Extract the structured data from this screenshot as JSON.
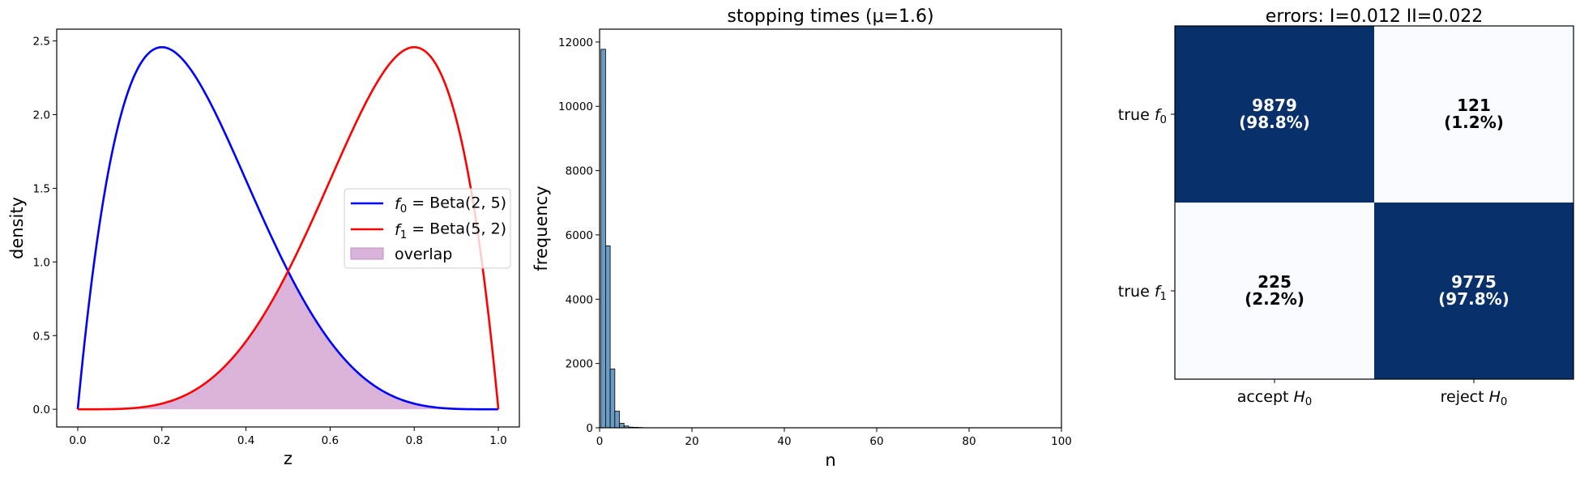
{
  "chart_data": [
    {
      "type": "line",
      "title": "",
      "xlabel": "z",
      "ylabel": "density",
      "xlim": [
        -0.05,
        1.05
      ],
      "ylim": [
        -0.12,
        2.58
      ],
      "xticks": [
        "0.0",
        "0.2",
        "0.4",
        "0.6",
        "0.8",
        "1.0"
      ],
      "yticks": [
        "0.0",
        "0.5",
        "1.0",
        "1.5",
        "2.0",
        "2.5"
      ],
      "grid": false,
      "legend_placement": "center-right",
      "series": [
        {
          "name": "f_0 = Beta(2, 5)",
          "sym": "f",
          "sub": "0",
          "rest": " = Beta(2, 5)",
          "distribution": "beta",
          "a": 2,
          "b": 5,
          "color": "#0000ff"
        },
        {
          "name": "f_1 = Beta(5, 2)",
          "sym": "f",
          "sub": "1",
          "rest": " = Beta(5, 2)",
          "distribution": "beta",
          "a": 5,
          "b": 2,
          "color": "#ff0000"
        }
      ],
      "fill": {
        "name": "overlap",
        "description": "min(f0, f1)",
        "color": "#d9b3d9"
      }
    },
    {
      "type": "bar",
      "title": "stopping times (μ=1.6)",
      "xlabel": "n",
      "ylabel": "frequency",
      "xlim": [
        0,
        100
      ],
      "ylim": [
        0,
        12400
      ],
      "xticks": [
        "0",
        "20",
        "40",
        "60",
        "80",
        "100"
      ],
      "yticks": [
        "0",
        "2000",
        "4000",
        "6000",
        "8000",
        "10000",
        "12000"
      ],
      "grid": false,
      "bin_width": 1,
      "bins": [
        0,
        1,
        2,
        3,
        4,
        5,
        6,
        7,
        8
      ],
      "values": [
        11775,
        5660,
        1830,
        515,
        140,
        55,
        20,
        15,
        10
      ],
      "color": "#6a9bc3",
      "edge_color": "#000000"
    },
    {
      "type": "heatmap",
      "title": "errors: I=0.012 II=0.022",
      "xticks": [
        {
          "pre": "accept ",
          "sym": "H",
          "sub": "0"
        },
        {
          "pre": "reject ",
          "sym": "H",
          "sub": "0"
        }
      ],
      "yticks": [
        {
          "pre": "true ",
          "sym": "f",
          "sub": "0"
        },
        {
          "pre": "true ",
          "sym": "f",
          "sub": "1"
        }
      ],
      "values": [
        [
          9879,
          121
        ],
        [
          225,
          9775
        ]
      ],
      "labels": [
        [
          "9879",
          "(98.8%)",
          "121",
          "(1.2%)"
        ],
        [
          "225",
          "(2.2%)",
          "9775",
          "(97.8%)"
        ]
      ],
      "colormap": "Blues",
      "colors": {
        "high": "#08306b",
        "low": "#f7fbff"
      }
    }
  ]
}
